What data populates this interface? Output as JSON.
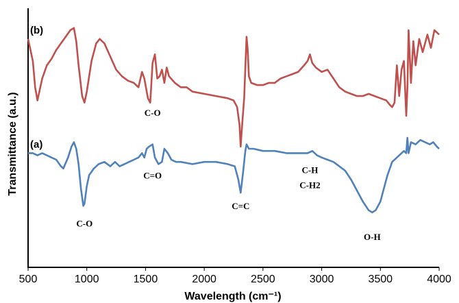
{
  "chart_data": {
    "type": "line",
    "xlabel": "Wavelength (cm⁻¹)",
    "ylabel": "Transmittance (a.u.)",
    "xlim": [
      500,
      4000
    ],
    "x_ticks": [
      "500",
      "1000",
      "1500",
      "2000",
      "2500",
      "3000",
      "3500",
      "4000"
    ],
    "grid": false,
    "series": [
      {
        "name": "(b)",
        "color": "#c0504d",
        "x": [
          500,
          540,
          560,
          580,
          620,
          660,
          700,
          740,
          780,
          820,
          860,
          890,
          910,
          930,
          960,
          980,
          1000,
          1040,
          1080,
          1110,
          1150,
          1200,
          1250,
          1300,
          1350,
          1400,
          1440,
          1470,
          1490,
          1520,
          1540,
          1560,
          1580,
          1600,
          1620,
          1640,
          1660,
          1680,
          1700,
          1750,
          1800,
          1850,
          1900,
          2000,
          2100,
          2200,
          2250,
          2280,
          2300,
          2310,
          2320,
          2340,
          2360,
          2370,
          2380,
          2400,
          2450,
          2500,
          2550,
          2600,
          2650,
          2700,
          2750,
          2800,
          2850,
          2880,
          2900,
          2920,
          2950,
          3000,
          3050,
          3100,
          3150,
          3200,
          3250,
          3300,
          3350,
          3400,
          3450,
          3500,
          3550,
          3580,
          3600,
          3620,
          3640,
          3660,
          3680,
          3700,
          3720,
          3730,
          3740,
          3760,
          3780,
          3800,
          3830,
          3860,
          3900,
          3930,
          3960,
          4000
        ],
        "y": [
          8.2,
          7.2,
          6.0,
          5.4,
          6.4,
          7.0,
          7.3,
          7.7,
          8.0,
          8.3,
          8.6,
          8.7,
          8.1,
          7.0,
          5.6,
          5.3,
          5.8,
          7.2,
          8.0,
          8.2,
          8.0,
          7.4,
          6.8,
          6.5,
          6.3,
          6.2,
          6.0,
          6.7,
          6.4,
          5.5,
          5.3,
          7.1,
          7.5,
          6.4,
          6.5,
          6.8,
          6.2,
          6.9,
          6.5,
          6.2,
          6.0,
          6.0,
          5.8,
          5.7,
          5.6,
          5.5,
          5.4,
          5.1,
          4.3,
          3.3,
          4.1,
          5.5,
          8.3,
          7.7,
          6.5,
          6.2,
          6.1,
          6.1,
          6.2,
          6.2,
          6.4,
          6.5,
          6.6,
          6.7,
          7.0,
          7.2,
          7.5,
          7.1,
          6.9,
          6.7,
          6.8,
          6.4,
          6.0,
          5.8,
          5.7,
          5.6,
          5.6,
          5.7,
          5.6,
          5.5,
          5.4,
          5.2,
          5.1,
          5.3,
          7.0,
          5.6,
          6.8,
          7.2,
          4.7,
          6.0,
          8.6,
          6.2,
          8.1,
          7.0,
          8.2,
          7.6,
          8.4,
          7.8,
          8.6,
          8.4
        ]
      },
      {
        "name": "(a)",
        "color": "#4f81bd",
        "x": [
          500,
          540,
          580,
          620,
          660,
          700,
          740,
          780,
          800,
          840,
          870,
          890,
          910,
          930,
          950,
          970,
          980,
          1000,
          1020,
          1060,
          1100,
          1150,
          1200,
          1240,
          1280,
          1320,
          1360,
          1400,
          1440,
          1470,
          1490,
          1510,
          1530,
          1560,
          1580,
          1610,
          1640,
          1660,
          1690,
          1720,
          1760,
          1800,
          1900,
          2000,
          2100,
          2200,
          2260,
          2290,
          2310,
          2330,
          2350,
          2360,
          2380,
          2420,
          2500,
          2600,
          2700,
          2800,
          2880,
          2920,
          2960,
          3000,
          3050,
          3100,
          3150,
          3200,
          3250,
          3300,
          3350,
          3400,
          3430,
          3460,
          3500,
          3530,
          3560,
          3600,
          3640,
          3680,
          3700,
          3720,
          3730,
          3740,
          3760,
          3800,
          3840,
          3880,
          3920,
          3950,
          3980,
          4000
        ],
        "y": [
          3.0,
          3.0,
          2.9,
          3.0,
          2.9,
          2.8,
          2.7,
          2.4,
          2.3,
          2.8,
          3.3,
          3.5,
          3.2,
          2.5,
          1.4,
          0.6,
          0.7,
          1.5,
          2.0,
          2.3,
          2.5,
          2.6,
          2.4,
          2.6,
          2.4,
          2.5,
          2.6,
          2.7,
          2.8,
          3.0,
          2.8,
          3.2,
          3.3,
          3.4,
          2.8,
          2.5,
          2.6,
          3.2,
          3.0,
          2.7,
          2.6,
          2.6,
          2.5,
          2.6,
          2.6,
          2.5,
          2.4,
          1.8,
          1.2,
          2.1,
          3.1,
          3.4,
          3.2,
          3.2,
          3.1,
          3.1,
          3.0,
          3.0,
          3.0,
          3.1,
          2.9,
          2.8,
          2.7,
          2.6,
          2.4,
          2.2,
          1.8,
          1.3,
          0.8,
          0.4,
          0.3,
          0.4,
          0.8,
          1.4,
          2.0,
          2.6,
          2.8,
          3.0,
          3.1,
          3.0,
          3.7,
          3.0,
          3.5,
          3.4,
          3.6,
          3.5,
          3.4,
          3.5,
          3.3,
          3.2
        ]
      }
    ],
    "annotations": [
      {
        "text": "C-O",
        "x": 1560,
        "y": 4.7
      },
      {
        "text": "C=O",
        "x": 1560,
        "y": 1.85
      },
      {
        "text": "C-O",
        "x": 980,
        "y": -0.35
      },
      {
        "text": "C=C",
        "x": 2310,
        "y": 0.45
      },
      {
        "text": "C-H",
        "x": 2900,
        "y": 2.1
      },
      {
        "text": "C-H2",
        "x": 2900,
        "y": 1.4
      },
      {
        "text": "O-H",
        "x": 3430,
        "y": -0.95
      }
    ]
  }
}
